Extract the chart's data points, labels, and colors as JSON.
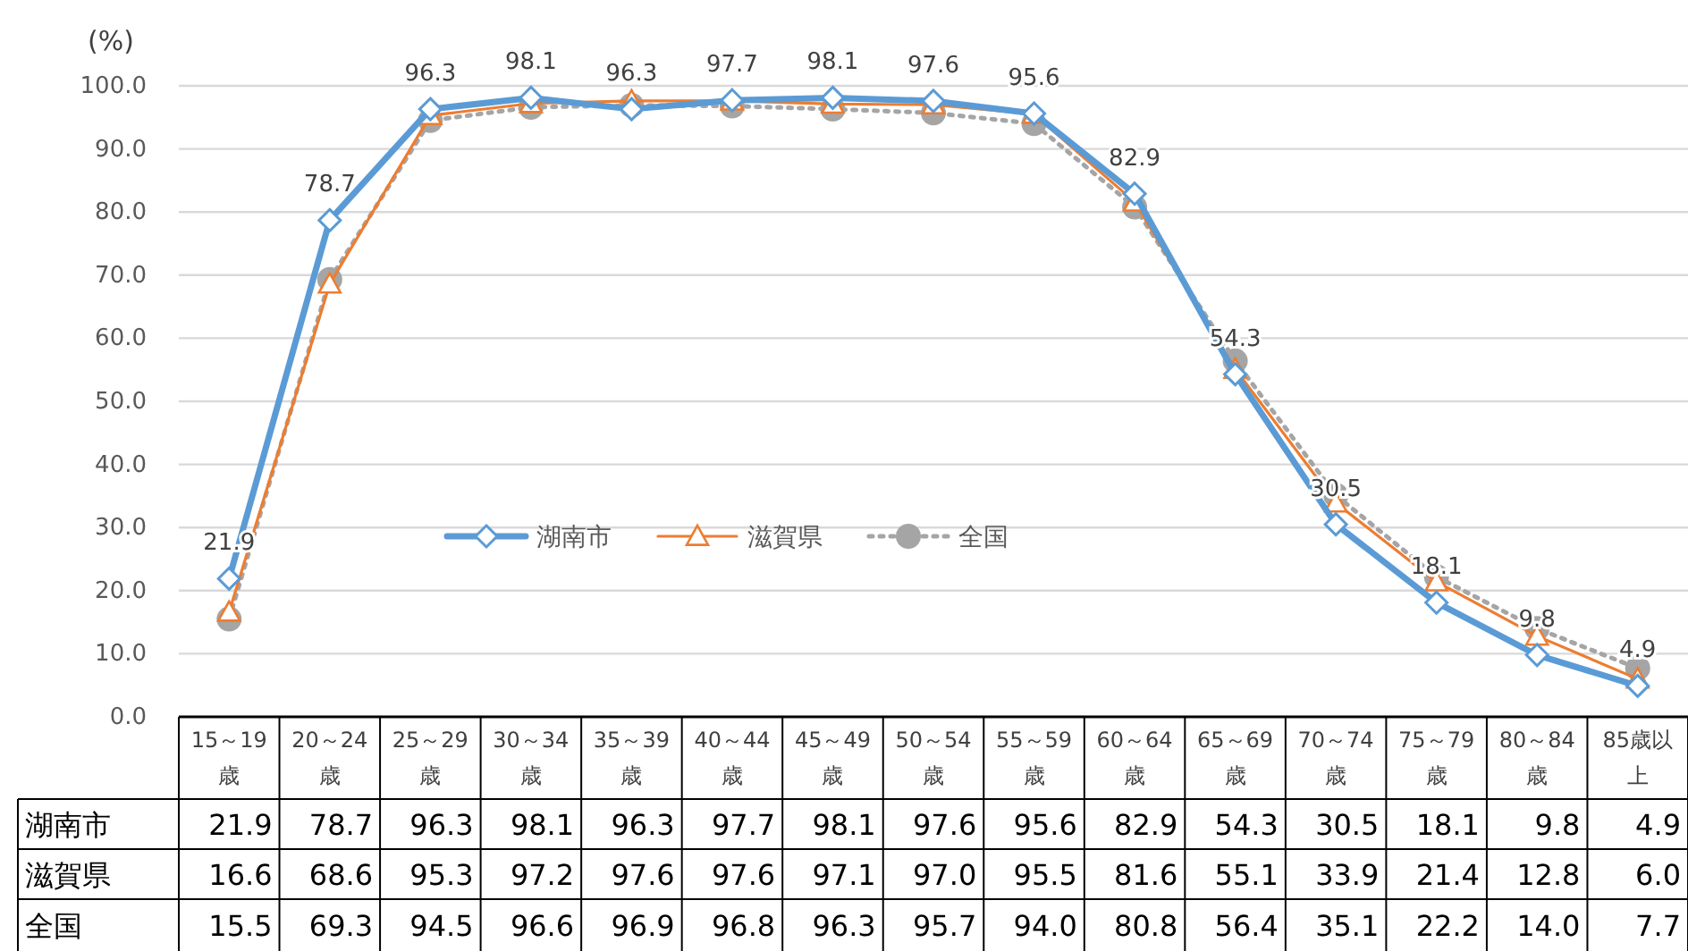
{
  "chart_data": {
    "type": "line",
    "ylabel": "(%)",
    "categories": [
      "15～19歳",
      "20～24歳",
      "25～29歳",
      "30～34歳",
      "35～39歳",
      "40～44歳",
      "45～49歳",
      "50～54歳",
      "55～59歳",
      "60～64歳",
      "65～69歳",
      "70～74歳",
      "75～79歳",
      "80～84歳",
      "85歳以上"
    ],
    "series": [
      {
        "name": "湖南市",
        "color": "#5b9bd5",
        "marker": "diamond",
        "line_style": "solid",
        "values": [
          21.9,
          78.7,
          96.3,
          98.1,
          96.3,
          97.7,
          98.1,
          97.6,
          95.6,
          82.9,
          54.3,
          30.5,
          18.1,
          9.8,
          4.9
        ],
        "value_labels": [
          "21.9",
          "78.7",
          "96.3",
          "98.1",
          "96.3",
          "97.7",
          "98.1",
          "97.6",
          "95.6",
          "82.9",
          "54.3",
          "30.5",
          "18.1",
          "9.8",
          "4.9"
        ]
      },
      {
        "name": "滋賀県",
        "color": "#ed7d31",
        "marker": "triangle",
        "line_style": "solid",
        "values": [
          16.6,
          68.6,
          95.3,
          97.2,
          97.6,
          97.6,
          97.1,
          97.0,
          95.5,
          81.6,
          55.1,
          33.9,
          21.4,
          12.8,
          6.0
        ],
        "value_labels": [
          "16.6",
          "68.6",
          "95.3",
          "97.2",
          "97.6",
          "97.6",
          "97.1",
          "97.0",
          "95.5",
          "81.6",
          "55.1",
          "33.9",
          "21.4",
          "12.8",
          "6.0"
        ]
      },
      {
        "name": "全国",
        "color": "#a5a5a5",
        "marker": "circle",
        "line_style": "dotted",
        "values": [
          15.5,
          69.3,
          94.5,
          96.6,
          96.9,
          96.8,
          96.3,
          95.7,
          94.0,
          80.8,
          56.4,
          35.1,
          22.2,
          14.0,
          7.7
        ],
        "value_labels": [
          "15.5",
          "69.3",
          "94.5",
          "96.6",
          "96.9",
          "96.8",
          "96.3",
          "95.7",
          "94.0",
          "80.8",
          "56.4",
          "35.1",
          "22.2",
          "14.0",
          "7.7"
        ]
      }
    ],
    "ylim": [
      0,
      100
    ],
    "yticks": [
      {
        "value": 0,
        "label": "0.0"
      },
      {
        "value": 10,
        "label": "10.0"
      },
      {
        "value": 20,
        "label": "20.0"
      },
      {
        "value": 30,
        "label": "30.0"
      },
      {
        "value": 40,
        "label": "40.0"
      },
      {
        "value": 50,
        "label": "50.0"
      },
      {
        "value": 60,
        "label": "60.0"
      },
      {
        "value": 70,
        "label": "70.0"
      },
      {
        "value": 80,
        "label": "80.0"
      },
      {
        "value": 90,
        "label": "90.0"
      },
      {
        "value": 100,
        "label": "100.0"
      }
    ],
    "grid": "y",
    "legend": "center"
  }
}
